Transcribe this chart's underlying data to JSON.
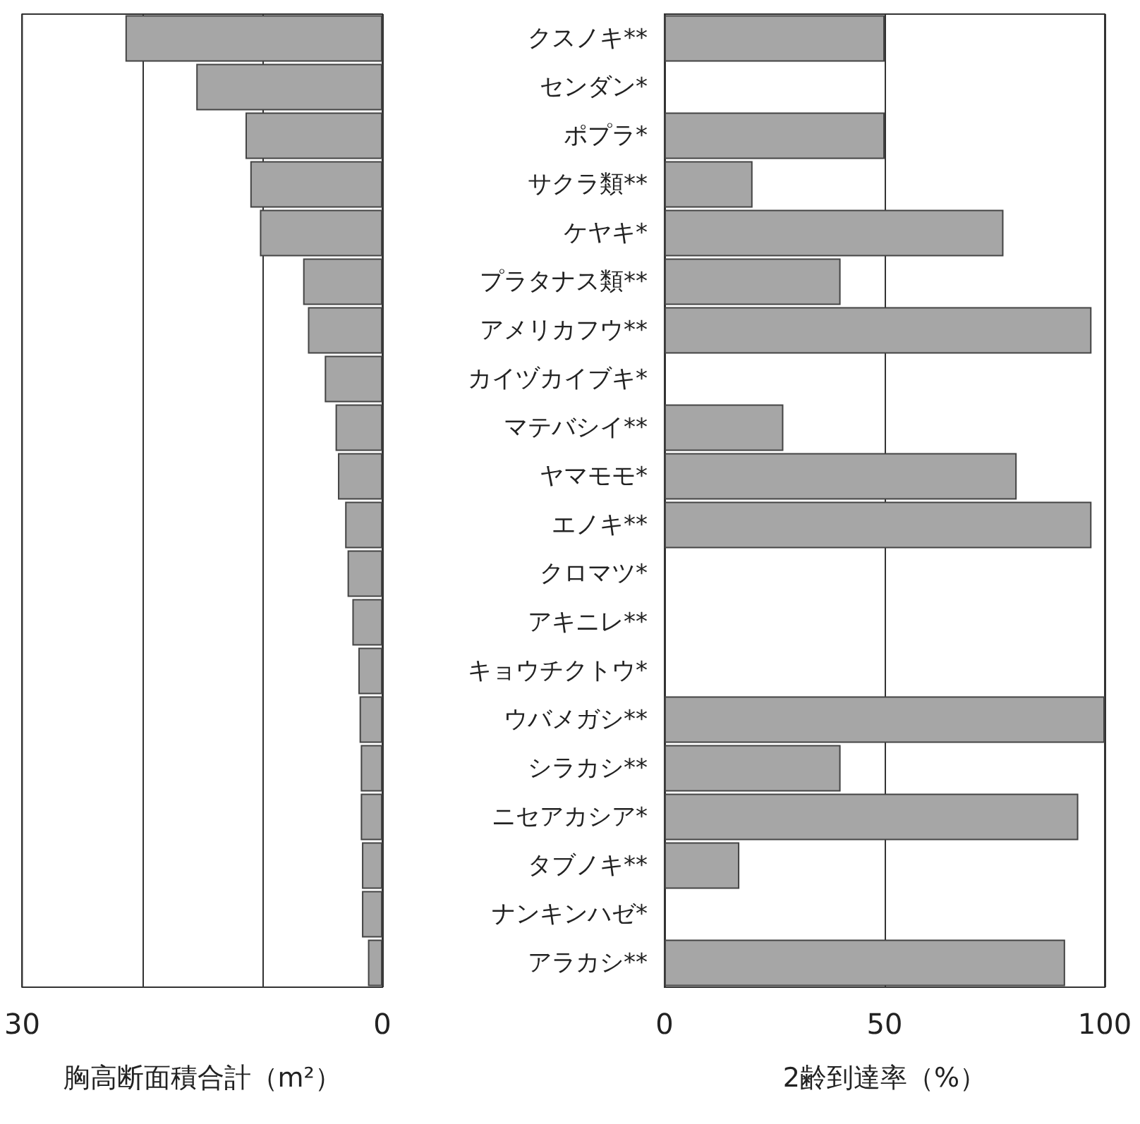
{
  "chart_data": [
    {
      "type": "bar",
      "orientation": "horizontal",
      "xlabel": "胸高断面積合計（m²）",
      "categories": [
        null,
        null,
        null,
        null,
        null,
        null,
        null,
        null,
        null,
        null,
        null,
        null,
        null,
        null,
        null,
        null,
        null,
        null,
        null,
        null
      ],
      "values": [
        21.4,
        15.5,
        11.4,
        11.0,
        10.2,
        6.6,
        6.2,
        4.8,
        3.9,
        3.7,
        3.1,
        2.9,
        2.5,
        2.0,
        1.9,
        1.8,
        1.8,
        1.7,
        1.7,
        1.2
      ],
      "color": "#a6a6a6",
      "xlim": [
        30,
        0
      ],
      "xticks": [
        30,
        {
          "value": 20,
          "label": null
        },
        {
          "value": 10,
          "label": null
        },
        0
      ],
      "grid": "x",
      "tick_labels": "x"
    },
    {
      "type": "bar",
      "orientation": "horizontal",
      "xlabel": "2齢到達率（%）",
      "categories": [
        "クスノキ**",
        "センダン*",
        "ポプラ*",
        "サクラ類**",
        "ケヤキ*",
        "プラタナス類**",
        "アメリカフウ**",
        "カイヅカイブキ*",
        "マテバシイ**",
        "ヤマモモ*",
        "エノキ**",
        "クロマツ*",
        "アキニレ**",
        "キョウチクトウ*",
        "ウバメガシ**",
        "シラカシ**",
        "ニセアカシア*",
        "タブノキ**",
        "ナンキンハゼ*",
        "アラカシ**"
      ],
      "values": [
        50,
        0,
        50,
        20,
        77,
        40,
        97,
        0,
        27,
        80,
        97,
        0,
        0,
        0,
        100,
        40,
        94,
        17,
        0,
        91
      ],
      "color": "#a6a6a6",
      "xlim": [
        0,
        100
      ],
      "xticks": [
        0,
        50,
        100
      ],
      "grid": "x"
    }
  ]
}
